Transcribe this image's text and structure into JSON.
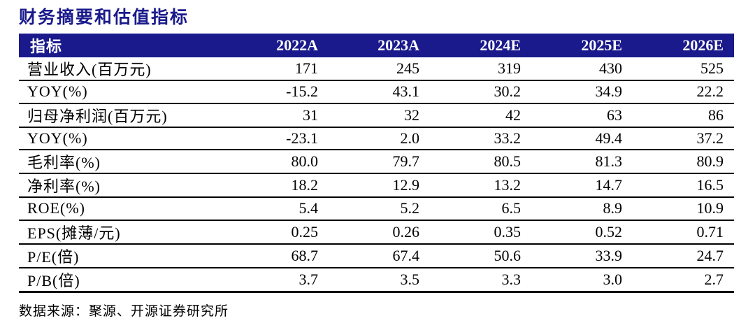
{
  "title": "财务摘要和估值指标",
  "colors": {
    "accent_navy": "#1A1A8C",
    "header_text": "#FFFFFF",
    "body_text": "#000000",
    "row_border": "#000000"
  },
  "table": {
    "columns": [
      "指标",
      "2022A",
      "2023A",
      "2024E",
      "2025E",
      "2026E"
    ],
    "rows": [
      {
        "label": "营业收入(百万元)",
        "values": [
          "171",
          "245",
          "319",
          "430",
          "525"
        ]
      },
      {
        "label": "YOY(%)",
        "values": [
          "-15.2",
          "43.1",
          "30.2",
          "34.9",
          "22.2"
        ]
      },
      {
        "label": "归母净利润(百万元)",
        "values": [
          "31",
          "32",
          "42",
          "63",
          "86"
        ]
      },
      {
        "label": "YOY(%)",
        "values": [
          "-23.1",
          "2.0",
          "33.2",
          "49.4",
          "37.2"
        ]
      },
      {
        "label": "毛利率(%)",
        "values": [
          "80.0",
          "79.7",
          "80.5",
          "81.3",
          "80.9"
        ]
      },
      {
        "label": "净利率(%)",
        "values": [
          "18.2",
          "12.9",
          "13.2",
          "14.7",
          "16.5"
        ]
      },
      {
        "label": "ROE(%)",
        "values": [
          "5.4",
          "5.2",
          "6.5",
          "8.9",
          "10.9"
        ]
      },
      {
        "label": "EPS(摊薄/元)",
        "values": [
          "0.25",
          "0.26",
          "0.35",
          "0.52",
          "0.71"
        ]
      },
      {
        "label": "P/E(倍)",
        "values": [
          "68.7",
          "67.4",
          "50.6",
          "33.9",
          "24.7"
        ]
      },
      {
        "label": "P/B(倍)",
        "values": [
          "3.7",
          "3.5",
          "3.3",
          "3.0",
          "2.7"
        ]
      }
    ]
  },
  "footer": {
    "source": "数据来源：聚源、开源证券研究所"
  }
}
